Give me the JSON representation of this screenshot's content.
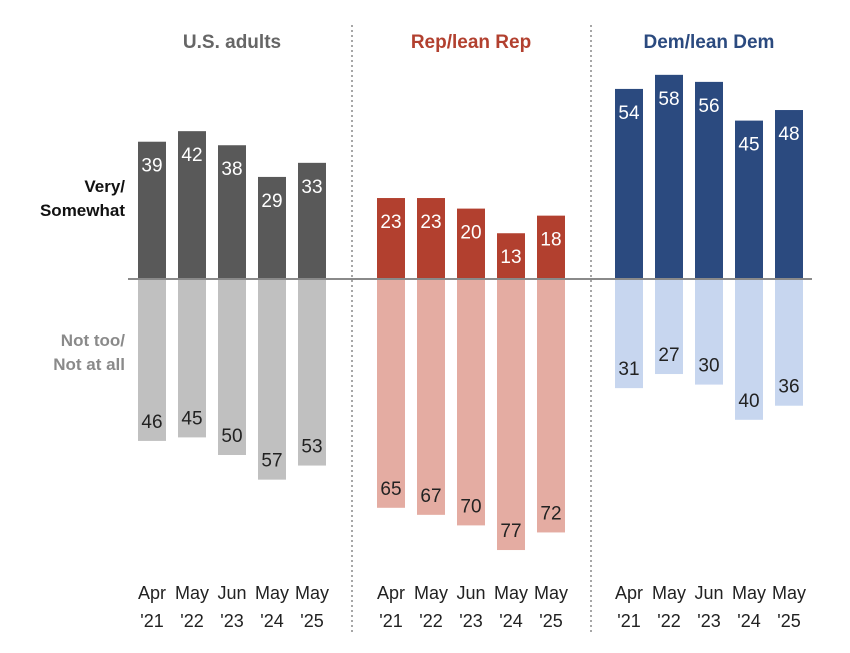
{
  "chart_data": {
    "type": "bar",
    "row_labels": {
      "positive": [
        "Very/",
        "Somewhat"
      ],
      "negative": [
        "Not too/",
        "Not at all"
      ]
    },
    "categories": [
      [
        "Apr",
        "'21"
      ],
      [
        "May",
        "'22"
      ],
      [
        "Jun",
        "'23"
      ],
      [
        "May",
        "'24"
      ],
      [
        "May",
        "'25"
      ]
    ],
    "groups": [
      {
        "name": "U.S. adults",
        "color": "#666666",
        "pos_color": "#595959",
        "neg_color": "#c0c0c0",
        "positive": [
          39,
          42,
          38,
          29,
          33
        ],
        "negative": [
          46,
          45,
          50,
          57,
          53
        ]
      },
      {
        "name": "Rep/lean Rep",
        "color": "#b2402f",
        "pos_color": "#b2402f",
        "neg_color": "#e4aca2",
        "positive": [
          23,
          23,
          20,
          13,
          18
        ],
        "negative": [
          65,
          67,
          70,
          77,
          72
        ]
      },
      {
        "name": "Dem/lean Dem",
        "color": "#2b4a7f",
        "pos_color": "#2b4a7f",
        "neg_color": "#c7d6ef",
        "positive": [
          54,
          58,
          56,
          45,
          48
        ],
        "negative": [
          31,
          27,
          30,
          40,
          36
        ]
      }
    ]
  }
}
